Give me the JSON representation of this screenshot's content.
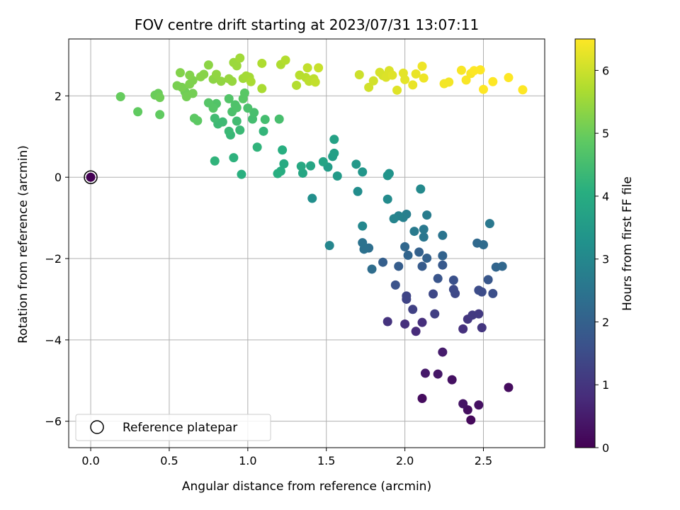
{
  "chart_data": {
    "type": "scatter",
    "title": "FOV centre drift starting at 2023/07/31 13:07:11",
    "xlabel": "Angular distance from reference (arcmin)",
    "ylabel": "Rotation from reference (arcmin)",
    "xlim": [
      -0.14,
      2.89
    ],
    "ylim": [
      -6.65,
      3.4
    ],
    "xticks": [
      0.0,
      0.5,
      1.0,
      1.5,
      2.0,
      2.5
    ],
    "xtick_labels": [
      "0.0",
      "0.5",
      "1.0",
      "1.5",
      "2.0",
      "2.5"
    ],
    "yticks": [
      -6,
      -4,
      -2,
      0,
      2
    ],
    "ytick_labels": [
      "−6",
      "−4",
      "−2",
      "0",
      "2"
    ],
    "grid": true,
    "colormap": "viridis",
    "colorbar": {
      "label": "Hours from first FF file",
      "range": [
        0,
        6.5
      ],
      "ticks": [
        0,
        1,
        2,
        3,
        4,
        5,
        6
      ],
      "tick_labels": [
        "0",
        "1",
        "2",
        "3",
        "4",
        "5",
        "6"
      ]
    },
    "legend": {
      "position": "lower-left",
      "entries": [
        "Reference platepar"
      ]
    },
    "reference_point": {
      "x": 0.0,
      "y": 0.0,
      "c": 0.0
    },
    "series": [
      {
        "points": [
          [
            0.0,
            0.0,
            0.0
          ],
          [
            2.11,
            -5.44,
            0.2
          ],
          [
            2.42,
            -5.97,
            0.15
          ],
          [
            2.4,
            -5.72,
            0.25
          ],
          [
            2.47,
            -5.6,
            0.3
          ],
          [
            2.37,
            -5.57,
            0.35
          ],
          [
            2.66,
            -5.17,
            0.2
          ],
          [
            2.3,
            -4.98,
            0.3
          ],
          [
            2.21,
            -4.84,
            0.4
          ],
          [
            2.13,
            -4.82,
            0.45
          ],
          [
            2.24,
            -4.3,
            0.5
          ],
          [
            2.07,
            -3.79,
            0.8
          ],
          [
            2.11,
            -3.57,
            0.85
          ],
          [
            2.0,
            -3.61,
            0.9
          ],
          [
            1.89,
            -3.55,
            0.95
          ],
          [
            2.37,
            -3.73,
            0.9
          ],
          [
            2.49,
            -3.7,
            1.0
          ],
          [
            2.4,
            -3.49,
            1.0
          ],
          [
            2.43,
            -3.39,
            1.1
          ],
          [
            2.47,
            -3.36,
            1.1
          ],
          [
            2.19,
            -3.36,
            1.2
          ],
          [
            2.05,
            -3.25,
            1.25
          ],
          [
            2.01,
            -3.0,
            1.3
          ],
          [
            2.01,
            -2.92,
            1.35
          ],
          [
            2.18,
            -2.87,
            1.4
          ],
          [
            2.32,
            -2.86,
            1.4
          ],
          [
            2.31,
            -2.76,
            1.45
          ],
          [
            2.47,
            -2.78,
            1.5
          ],
          [
            2.49,
            -2.82,
            1.5
          ],
          [
            2.56,
            -2.86,
            1.55
          ],
          [
            2.31,
            -2.53,
            1.6
          ],
          [
            1.94,
            -2.65,
            1.65
          ],
          [
            2.21,
            -2.49,
            1.7
          ],
          [
            2.53,
            -2.52,
            1.75
          ],
          [
            2.24,
            -2.16,
            1.8
          ],
          [
            2.11,
            -2.19,
            1.85
          ],
          [
            1.96,
            -2.19,
            1.9
          ],
          [
            1.86,
            -2.09,
            1.95
          ],
          [
            2.09,
            -1.84,
            2.0
          ],
          [
            2.14,
            -1.99,
            2.0
          ],
          [
            2.24,
            -1.93,
            2.05
          ],
          [
            2.02,
            -1.92,
            2.1
          ],
          [
            2.0,
            -1.71,
            2.15
          ],
          [
            2.58,
            -2.21,
            2.1
          ],
          [
            2.62,
            -2.19,
            2.15
          ],
          [
            2.46,
            -1.62,
            2.2
          ],
          [
            2.5,
            -1.66,
            2.25
          ],
          [
            1.79,
            -2.26,
            2.3
          ],
          [
            1.77,
            -1.74,
            2.35
          ],
          [
            1.74,
            -1.77,
            2.4
          ],
          [
            1.73,
            -1.61,
            2.45
          ],
          [
            2.24,
            -1.43,
            2.5
          ],
          [
            2.12,
            -1.47,
            2.55
          ],
          [
            2.12,
            -1.28,
            2.6
          ],
          [
            2.06,
            -1.33,
            2.65
          ],
          [
            2.54,
            -1.14,
            2.6
          ],
          [
            2.14,
            -0.93,
            2.7
          ],
          [
            2.01,
            -0.91,
            2.75
          ],
          [
            1.99,
            -0.99,
            2.8
          ],
          [
            1.96,
            -0.95,
            2.85
          ],
          [
            1.93,
            -1.02,
            2.9
          ],
          [
            1.52,
            -1.68,
            2.95
          ],
          [
            1.73,
            -1.2,
            3.0
          ],
          [
            2.1,
            -0.29,
            3.05
          ],
          [
            1.89,
            -0.54,
            3.1
          ],
          [
            1.7,
            -0.35,
            3.15
          ],
          [
            1.41,
            -0.52,
            3.2
          ],
          [
            1.9,
            0.09,
            3.3
          ],
          [
            1.89,
            0.04,
            3.35
          ],
          [
            1.73,
            0.13,
            3.4
          ],
          [
            1.69,
            0.32,
            3.45
          ],
          [
            1.57,
            0.03,
            3.5
          ],
          [
            1.51,
            0.25,
            3.55
          ],
          [
            1.54,
            0.51,
            3.6
          ],
          [
            1.55,
            0.59,
            3.65
          ],
          [
            1.55,
            0.93,
            3.7
          ],
          [
            1.48,
            0.38,
            3.75
          ],
          [
            1.4,
            0.28,
            3.8
          ],
          [
            1.35,
            0.1,
            3.85
          ],
          [
            1.34,
            0.27,
            3.9
          ],
          [
            1.23,
            0.33,
            3.95
          ],
          [
            1.21,
            0.15,
            4.0
          ],
          [
            1.19,
            0.09,
            4.05
          ],
          [
            1.22,
            0.67,
            4.05
          ],
          [
            0.96,
            0.07,
            4.1
          ],
          [
            0.91,
            0.48,
            4.15
          ],
          [
            0.79,
            0.4,
            4.2
          ],
          [
            1.06,
            0.74,
            4.2
          ],
          [
            1.1,
            1.13,
            4.25
          ],
          [
            0.89,
            1.04,
            4.3
          ],
          [
            0.88,
            1.13,
            4.35
          ],
          [
            0.95,
            1.16,
            4.35
          ],
          [
            0.84,
            1.36,
            4.4
          ],
          [
            0.81,
            1.31,
            4.4
          ],
          [
            0.79,
            1.45,
            4.45
          ],
          [
            0.93,
            1.38,
            4.45
          ],
          [
            1.03,
            1.43,
            4.5
          ],
          [
            1.11,
            1.42,
            4.5
          ],
          [
            1.2,
            1.43,
            4.55
          ],
          [
            1.04,
            1.59,
            4.55
          ],
          [
            1.0,
            1.7,
            4.6
          ],
          [
            0.9,
            1.61,
            4.6
          ],
          [
            0.93,
            1.71,
            4.65
          ],
          [
            0.92,
            1.78,
            4.65
          ],
          [
            0.88,
            1.93,
            4.7
          ],
          [
            0.8,
            1.81,
            4.7
          ],
          [
            0.78,
            1.7,
            4.75
          ],
          [
            0.75,
            1.83,
            4.75
          ],
          [
            0.97,
            1.93,
            4.8
          ],
          [
            0.98,
            2.07,
            4.8
          ],
          [
            0.68,
            1.39,
            4.85
          ],
          [
            0.66,
            1.45,
            4.85
          ],
          [
            0.44,
            1.54,
            4.9
          ],
          [
            0.3,
            1.61,
            4.9
          ],
          [
            0.19,
            1.98,
            4.95
          ],
          [
            0.41,
            2.02,
            5.0
          ],
          [
            0.43,
            2.06,
            5.0
          ],
          [
            0.44,
            1.96,
            5.05
          ],
          [
            0.6,
            2.1,
            5.05
          ],
          [
            0.61,
            1.98,
            5.1
          ],
          [
            0.65,
            2.06,
            5.1
          ],
          [
            0.58,
            2.21,
            5.15
          ],
          [
            0.55,
            2.25,
            5.15
          ],
          [
            0.63,
            2.29,
            5.2
          ],
          [
            0.65,
            2.38,
            5.2
          ],
          [
            0.57,
            2.57,
            5.25
          ],
          [
            0.63,
            2.51,
            5.25
          ],
          [
            0.7,
            2.47,
            5.3
          ],
          [
            0.72,
            2.53,
            5.3
          ],
          [
            0.78,
            2.41,
            5.35
          ],
          [
            0.75,
            2.76,
            5.35
          ],
          [
            0.8,
            2.53,
            5.4
          ],
          [
            0.83,
            2.36,
            5.4
          ],
          [
            0.88,
            2.42,
            5.45
          ],
          [
            0.9,
            2.36,
            5.45
          ],
          [
            0.91,
            2.82,
            5.5
          ],
          [
            0.93,
            2.74,
            5.5
          ],
          [
            0.95,
            2.93,
            5.55
          ],
          [
            0.97,
            2.43,
            5.55
          ],
          [
            0.99,
            2.49,
            5.6
          ],
          [
            1.01,
            2.46,
            5.6
          ],
          [
            1.02,
            2.35,
            5.65
          ],
          [
            1.09,
            2.18,
            5.65
          ],
          [
            1.09,
            2.8,
            5.7
          ],
          [
            1.21,
            2.77,
            5.7
          ],
          [
            1.24,
            2.88,
            5.75
          ],
          [
            1.31,
            2.26,
            5.75
          ],
          [
            1.33,
            2.51,
            5.8
          ],
          [
            1.37,
            2.45,
            5.8
          ],
          [
            1.39,
            2.36,
            5.85
          ],
          [
            1.42,
            2.42,
            5.85
          ],
          [
            1.43,
            2.34,
            5.9
          ],
          [
            1.38,
            2.69,
            5.9
          ],
          [
            1.45,
            2.69,
            5.95
          ],
          [
            1.71,
            2.52,
            6.0
          ],
          [
            1.77,
            2.21,
            6.05
          ],
          [
            1.8,
            2.37,
            6.05
          ],
          [
            1.84,
            2.58,
            6.1
          ],
          [
            1.86,
            2.5,
            6.1
          ],
          [
            1.88,
            2.46,
            6.15
          ],
          [
            1.9,
            2.62,
            6.15
          ],
          [
            1.92,
            2.51,
            6.2
          ],
          [
            1.95,
            2.14,
            6.2
          ],
          [
            1.99,
            2.56,
            6.25
          ],
          [
            2.0,
            2.4,
            6.25
          ],
          [
            2.05,
            2.27,
            6.3
          ],
          [
            2.07,
            2.54,
            6.3
          ],
          [
            2.12,
            2.44,
            6.35
          ],
          [
            2.11,
            2.73,
            6.35
          ],
          [
            2.25,
            2.3,
            6.4
          ],
          [
            2.28,
            2.34,
            6.4
          ],
          [
            2.36,
            2.63,
            6.45
          ],
          [
            2.39,
            2.39,
            6.45
          ],
          [
            2.42,
            2.55,
            6.45
          ],
          [
            2.44,
            2.62,
            6.5
          ],
          [
            2.48,
            2.64,
            6.5
          ],
          [
            2.5,
            2.16,
            6.5
          ],
          [
            2.56,
            2.35,
            6.5
          ],
          [
            2.66,
            2.45,
            6.5
          ],
          [
            2.75,
            2.15,
            6.5
          ]
        ]
      }
    ]
  }
}
